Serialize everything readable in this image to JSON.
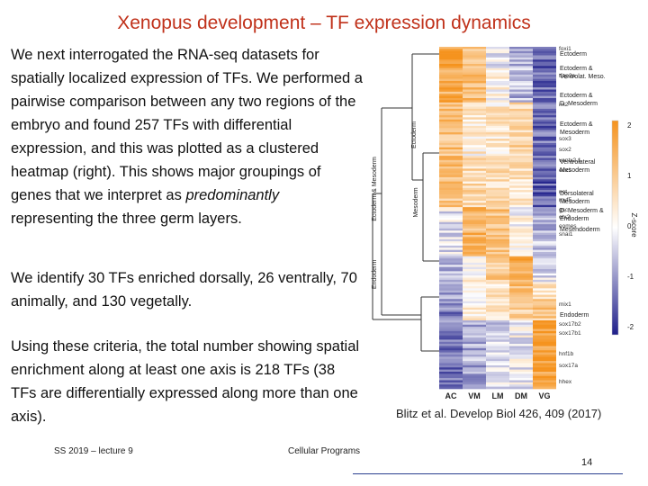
{
  "slide": {
    "title": "Xenopus development – TF expression dynamics",
    "paragraph1_a": "We next interrogated the RNA-seq datasets for spatially localized expression of TFs. We performed a pairwise comparison between any two regions of the embryo and found 257 TFs with differential expression, and this was plotted as a clustered heatmap (right). This shows major groupings of genes that we interpret as ",
    "paragraph1_em": "predominantly",
    "paragraph1_b": " representing the three germ layers.",
    "paragraph2": "We identify 30 TFs enriched dorsally, 26 ventrally, 70 animally, and 130 vegetally.",
    "paragraph3": "Using these criteria, the total number showing spatial enrichment along at least one axis is 218 TFs (38 TFs are differentially expressed along more than one axis).",
    "citation": "Blitz et al. Develop Biol 426, 409 (2017)",
    "footer_left": "SS 2019 – lecture 9",
    "footer_center": "Cellular Programs",
    "page_number": "14"
  },
  "heatmap": {
    "columns": [
      "AC",
      "VM",
      "LM",
      "DM",
      "VG"
    ],
    "genes": [
      "foxi1",
      "tfap2a",
      "irx2",
      "sox3",
      "sox2",
      "ventx2.1",
      "evx1",
      "not",
      "myf5",
      "gsc",
      "otx2",
      "eomes",
      "snai1",
      "mix1",
      "sox17b2",
      "sox17b1",
      "hnf1b",
      "sox17a",
      "hhex"
    ],
    "clusters": [
      {
        "label": "Ectoderm"
      },
      {
        "label": "Ectoderm & Ventrolat. Meso."
      },
      {
        "label": "Ectoderm & D. Mesoderm"
      },
      {
        "label": "Ectoderm & Mesoderm"
      },
      {
        "label": "Ventrolateral Mesoderm"
      },
      {
        "label": "Dorsolateral Mesoderm"
      },
      {
        "label": "D. Mesoderm & Endoderm"
      },
      {
        "label": "Mesendoderm"
      },
      {
        "label": "Endoderm"
      }
    ],
    "tree_labels": [
      "Ectoderm",
      "Mesoderm",
      "Ectoderm & Mesoderm",
      "Endoderm"
    ],
    "colorbar": {
      "label": "Z-score",
      "ticks": [
        "2",
        "1",
        "0",
        "-1",
        "-2"
      ],
      "high_color": "#f5931e",
      "mid_color": "#ffffff",
      "low_color": "#1f1f8a"
    }
  }
}
